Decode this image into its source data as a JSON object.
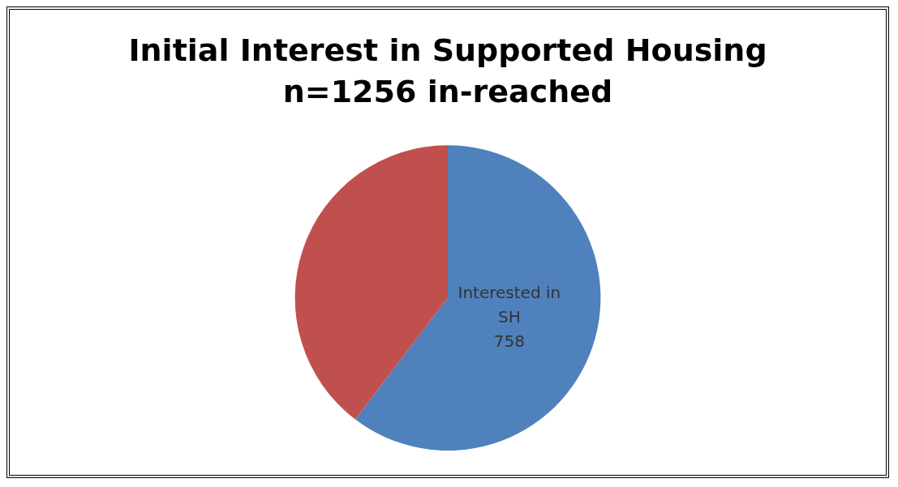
{
  "chart_data": {
    "type": "pie",
    "title": "Initial Interest in Supported Housing",
    "subtitle": "n=1256 in-reached",
    "categories": [
      "Interested in SH",
      null
    ],
    "values": [
      758,
      498
    ],
    "colors": [
      "#4f81bd",
      "#c0504d"
    ],
    "value_labels": [
      "758",
      null
    ],
    "legend": false
  }
}
